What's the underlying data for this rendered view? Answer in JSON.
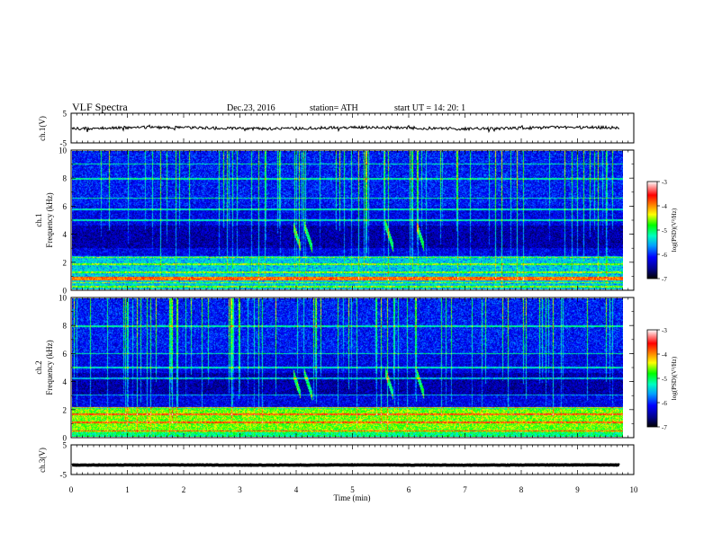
{
  "header": {
    "title": "VLF  Spectra",
    "date": "Dec.23, 2016",
    "station": "station= ATH",
    "start_ut": "start  UT  =    14: 20: 1"
  },
  "chart_data": [
    {
      "type": "line",
      "name": "ch1-waveform",
      "ylabel": "ch.1(V)",
      "ylim": [
        -5,
        5
      ],
      "yticks": [
        "5",
        "-5"
      ],
      "xlim": [
        0,
        10
      ],
      "baseline_value": 0,
      "grid": false
    },
    {
      "type": "heatmap",
      "name": "ch1-spectrogram",
      "ylabel": "ch.1\nFrequency  (kHz)",
      "ylabel_lines": [
        "ch.1",
        "Frequency  (kHz)"
      ],
      "ylim": [
        0,
        10
      ],
      "yticks": [
        "0",
        "2",
        "4",
        "6",
        "8",
        "10"
      ],
      "xlim": [
        0,
        9.8
      ],
      "color_scale": {
        "label": "log(PSD)(V²/Hz)",
        "range": [
          -7,
          -3
        ],
        "ticks": [
          "-3",
          "-4",
          "-5",
          "-6",
          "-7"
        ],
        "colors": [
          "#000000",
          "#00008b",
          "#0000ff",
          "#00a0ff",
          "#00ffc0",
          "#00ff00",
          "#ffff00",
          "#ff8000",
          "#ff0000",
          "#ffffff"
        ]
      },
      "features": {
        "strong_band_khz": [
          0.6,
          0.9
        ],
        "bright_lines_khz": [
          0.15,
          0.45,
          1.2,
          1.8,
          2.3,
          5.0,
          5.8,
          6.6,
          8.0,
          9.1
        ],
        "whistler_times_min": [
          3.95,
          4.15,
          5.6,
          6.15
        ]
      }
    },
    {
      "type": "heatmap",
      "name": "ch2-spectrogram",
      "ylabel": "ch.2\nFrequency  (kHz)",
      "ylabel_lines": [
        "ch.2",
        "Frequency  (kHz)"
      ],
      "ylim": [
        0,
        10
      ],
      "yticks": [
        "0",
        "2",
        "4",
        "6",
        "8",
        "10"
      ],
      "xlim": [
        0,
        9.8
      ],
      "color_scale": {
        "label": "log(PSD)(V²/Hz)",
        "range": [
          -7,
          -3
        ],
        "ticks": [
          "-3",
          "-4",
          "-5",
          "-6",
          "-7"
        ]
      },
      "features": {
        "green_band_khz": [
          0.3,
          2.0
        ],
        "bright_lines_khz": [
          0.4,
          1.0,
          1.6,
          2.1,
          3.0,
          4.2,
          5.0,
          6.0,
          8.0
        ],
        "whistler_times_min": [
          3.95,
          4.15,
          5.6,
          6.15
        ]
      }
    },
    {
      "type": "line",
      "name": "ch3-waveform",
      "ylabel": "ch.3(V)",
      "ylim": [
        -5,
        5
      ],
      "yticks": [
        "5",
        "-5"
      ],
      "xlim": [
        0,
        10
      ],
      "baseline_value": -1.8,
      "grid": false
    }
  ],
  "x_axis": {
    "label": "Time  (min)",
    "ticks": [
      "0",
      "1",
      "2",
      "3",
      "4",
      "5",
      "6",
      "7",
      "8",
      "9",
      "10"
    ],
    "range": [
      0,
      10
    ]
  }
}
